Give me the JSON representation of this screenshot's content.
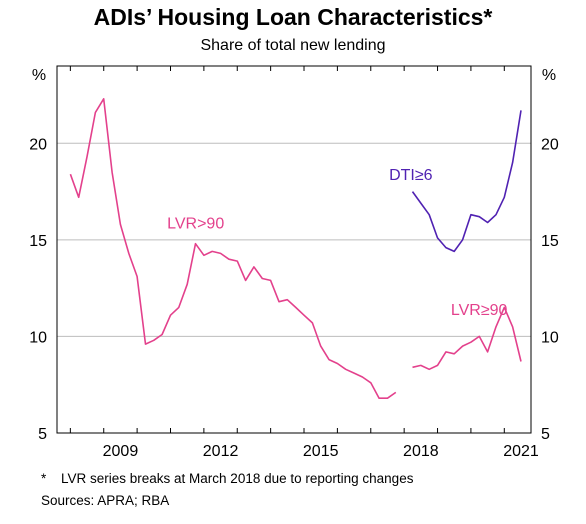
{
  "title": "ADIs’ Housing Loan Characteristics*",
  "subtitle": "Share of total new lending",
  "footnote_mark": "*",
  "footnote": "LVR series breaks at March 2018 due to reporting changes",
  "sources": "Sources: APRA; RBA",
  "chart_data": {
    "type": "line",
    "x_axis": {
      "ticks": [
        "2009",
        "2012",
        "2015",
        "2018",
        "2021"
      ],
      "range": [
        2007.6,
        2021.8
      ]
    },
    "y_axis": {
      "unit_label": "%",
      "ticks": [
        5,
        10,
        15,
        20
      ],
      "range": [
        5,
        24
      ],
      "grid": true,
      "dual_axis": true
    },
    "series": [
      {
        "name": "LVR>90",
        "color": "#e3418c",
        "points": [
          [
            2008.0,
            18.4
          ],
          [
            2008.25,
            17.2
          ],
          [
            2008.5,
            19.3
          ],
          [
            2008.75,
            21.6
          ],
          [
            2009.0,
            22.3
          ],
          [
            2009.25,
            18.5
          ],
          [
            2009.5,
            15.8
          ],
          [
            2009.75,
            14.3
          ],
          [
            2010.0,
            13.1
          ],
          [
            2010.25,
            9.6
          ],
          [
            2010.5,
            9.8
          ],
          [
            2010.75,
            10.1
          ],
          [
            2011.0,
            11.1
          ],
          [
            2011.25,
            11.5
          ],
          [
            2011.5,
            12.7
          ],
          [
            2011.75,
            14.8
          ],
          [
            2012.0,
            14.2
          ],
          [
            2012.25,
            14.4
          ],
          [
            2012.5,
            14.3
          ],
          [
            2012.75,
            14.0
          ],
          [
            2013.0,
            13.9
          ],
          [
            2013.25,
            12.9
          ],
          [
            2013.5,
            13.6
          ],
          [
            2013.75,
            13.0
          ],
          [
            2014.0,
            12.9
          ],
          [
            2014.25,
            11.8
          ],
          [
            2014.5,
            11.9
          ],
          [
            2014.75,
            11.5
          ],
          [
            2015.0,
            11.1
          ],
          [
            2015.25,
            10.7
          ],
          [
            2015.5,
            9.5
          ],
          [
            2015.75,
            8.8
          ],
          [
            2016.0,
            8.6
          ],
          [
            2016.25,
            8.3
          ],
          [
            2016.5,
            8.1
          ],
          [
            2016.75,
            7.9
          ],
          [
            2017.0,
            7.6
          ],
          [
            2017.25,
            6.8
          ],
          [
            2017.5,
            6.8
          ],
          [
            2017.75,
            7.1
          ]
        ]
      },
      {
        "name": "LVR≥90",
        "color": "#e3418c",
        "points": [
          [
            2018.25,
            8.4
          ],
          [
            2018.5,
            8.5
          ],
          [
            2018.75,
            8.3
          ],
          [
            2019.0,
            8.5
          ],
          [
            2019.25,
            9.2
          ],
          [
            2019.5,
            9.1
          ],
          [
            2019.75,
            9.5
          ],
          [
            2020.0,
            9.7
          ],
          [
            2020.25,
            10.0
          ],
          [
            2020.5,
            9.2
          ],
          [
            2020.75,
            10.5
          ],
          [
            2021.0,
            11.5
          ],
          [
            2021.25,
            10.5
          ],
          [
            2021.5,
            8.7
          ]
        ]
      },
      {
        "name": "DTI≥6",
        "color": "#5022b2",
        "points": [
          [
            2018.25,
            17.5
          ],
          [
            2018.5,
            16.9
          ],
          [
            2018.75,
            16.3
          ],
          [
            2019.0,
            15.1
          ],
          [
            2019.25,
            14.6
          ],
          [
            2019.5,
            14.4
          ],
          [
            2019.75,
            15.0
          ],
          [
            2020.0,
            16.3
          ],
          [
            2020.25,
            16.2
          ],
          [
            2020.5,
            15.9
          ],
          [
            2020.75,
            16.3
          ],
          [
            2021.0,
            17.2
          ],
          [
            2021.25,
            19.0
          ],
          [
            2021.5,
            21.7
          ]
        ]
      }
    ]
  }
}
